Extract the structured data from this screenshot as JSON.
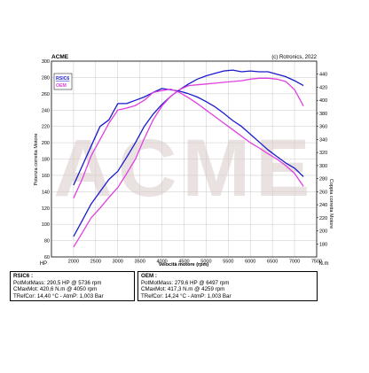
{
  "header": {
    "brand": "ACME",
    "copyright": "(c) Rotronics, 2022"
  },
  "watermark": {
    "text": "ACME"
  },
  "legend": {
    "position": "top-left",
    "items": [
      {
        "label": "RSIC6",
        "color": "#1a1acc"
      },
      {
        "label": "OEM",
        "color": "#e040e0"
      }
    ]
  },
  "colors": {
    "rsic6": "#1a1acc",
    "oem": "#e040e0",
    "frame": "#000000",
    "grid": "#bcbcbc"
  },
  "chart_data": {
    "type": "line",
    "xlabel": "Velocità motore (rpm)",
    "ylabel_left": "Potenza corretta Motore",
    "ylabel_right": "Coppia corretta Motore",
    "unit_left": "HP",
    "unit_right": "N.m",
    "xlim": [
      1500,
      7500
    ],
    "ylim_left": [
      60,
      300
    ],
    "ylim_right": [
      160,
      460
    ],
    "x_ticks": [
      "2000",
      "2500",
      "3000",
      "3500",
      "4000",
      "4500",
      "5000",
      "5500",
      "6000",
      "6500",
      "7000",
      "7500"
    ],
    "y_ticks_left": [
      "60",
      "80",
      "100",
      "120",
      "140",
      "160",
      "180",
      "200",
      "220",
      "240",
      "260",
      "280",
      "300"
    ],
    "y_ticks_right": [
      "180",
      "200",
      "220",
      "240",
      "260",
      "280",
      "300",
      "320",
      "340",
      "360",
      "380",
      "400",
      "420",
      "440"
    ],
    "grid": true,
    "series": [
      {
        "name": "RSIC6",
        "metric": "power",
        "axis": "left",
        "color": "#1a1acc",
        "x": [
          2000,
          2200,
          2400,
          2600,
          2800,
          3000,
          3200,
          3400,
          3600,
          3800,
          4000,
          4200,
          4400,
          4600,
          4800,
          5000,
          5200,
          5400,
          5600,
          5800,
          6000,
          6200,
          6400,
          6600,
          6800,
          7000,
          7200
        ],
        "y": [
          85,
          105,
          125,
          140,
          155,
          165,
          182,
          200,
          220,
          235,
          247,
          257,
          265,
          272,
          278,
          282,
          285,
          288,
          289,
          287,
          288,
          287,
          287,
          284,
          281,
          276,
          270
        ]
      },
      {
        "name": "OEM",
        "metric": "power",
        "axis": "left",
        "color": "#e040e0",
        "x": [
          2000,
          2200,
          2400,
          2600,
          2800,
          3000,
          3200,
          3400,
          3600,
          3800,
          4000,
          4200,
          4400,
          4600,
          4800,
          5000,
          5200,
          5400,
          5600,
          5800,
          6000,
          6200,
          6400,
          6600,
          6800,
          7000,
          7200
        ],
        "y": [
          72,
          90,
          108,
          120,
          133,
          145,
          162,
          180,
          205,
          228,
          245,
          257,
          265,
          270,
          271,
          272,
          273,
          274,
          275,
          276,
          278,
          279,
          279,
          278,
          275,
          265,
          245
        ]
      },
      {
        "name": "RSIC6",
        "metric": "torque",
        "axis": "right",
        "color": "#1a1acc",
        "x": [
          2000,
          2200,
          2400,
          2600,
          2800,
          3000,
          3200,
          3400,
          3600,
          3800,
          4000,
          4200,
          4400,
          4600,
          4800,
          5000,
          5200,
          5400,
          5600,
          5800,
          6000,
          6200,
          6400,
          6600,
          6800,
          7000,
          7200
        ],
        "y": [
          270,
          300,
          330,
          360,
          370,
          395,
          395,
          400,
          405,
          412,
          418,
          416,
          414,
          410,
          405,
          398,
          390,
          380,
          369,
          360,
          348,
          336,
          324,
          314,
          304,
          296,
          283
        ]
      },
      {
        "name": "OEM",
        "metric": "torque",
        "axis": "right",
        "color": "#e040e0",
        "x": [
          2000,
          2200,
          2400,
          2600,
          2800,
          3000,
          3200,
          3400,
          3600,
          3800,
          4000,
          4200,
          4400,
          4600,
          4800,
          5000,
          5200,
          5400,
          5600,
          5800,
          6000,
          6200,
          6400,
          6600,
          6800,
          7000,
          7200
        ],
        "y": [
          250,
          280,
          315,
          340,
          365,
          385,
          388,
          392,
          400,
          412,
          415,
          417,
          412,
          404,
          395,
          385,
          375,
          365,
          355,
          345,
          335,
          327,
          318,
          310,
          300,
          288,
          268
        ]
      }
    ]
  },
  "rsic6_box": {
    "title": "RSIC6 :",
    "line1": "PotMotMass: 290,5 HP @ 5736 rpm",
    "line2": "CMaxMot: 420,6 N.m @ 4050 rpm",
    "line3": "TRefCor: 14,40 °C - AtmP: 1,003 Bar"
  },
  "oem_box": {
    "title": "OEM :",
    "line1": "PotMotMass: 279,6 HP @ 6497 rpm",
    "line2": "CMaxMot: 417,3 N.m @ 4259 rpm",
    "line3": "TRefCor: 14,24 °C - AtmP: 1,003 Bar"
  }
}
